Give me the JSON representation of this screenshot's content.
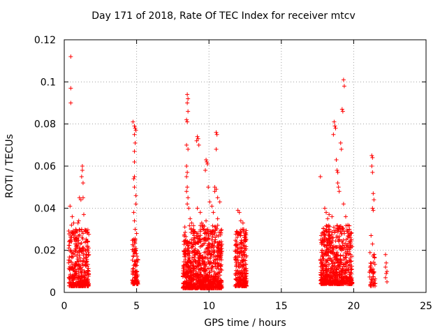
{
  "chart_data": {
    "type": "scatter",
    "title": "Day 171 of 2018, Rate Of TEC Index for receiver mtcv",
    "xlabel": "GPS time / hours",
    "ylabel": "ROTI / TECUs",
    "xlim": [
      0,
      25
    ],
    "ylim": [
      0,
      0.12
    ],
    "xticks": [
      "0",
      "5",
      "10",
      "15",
      "20",
      "25"
    ],
    "yticks": [
      "0",
      "0.02",
      "0.04",
      "0.06",
      "0.08",
      "0.1",
      "0.12"
    ],
    "grid": true,
    "marker": "+",
    "color": "#ff0000",
    "series": [
      {
        "points": [
          [
            0.45,
            0.112
          ],
          [
            0.45,
            0.097
          ],
          [
            0.45,
            0.09
          ],
          [
            0.4,
            0.041
          ],
          [
            0.5,
            0.032
          ],
          [
            0.6,
            0.028
          ],
          [
            0.7,
            0.025
          ],
          [
            0.8,
            0.03
          ],
          [
            0.9,
            0.022
          ],
          [
            1.0,
            0.034
          ],
          [
            1.05,
            0.045
          ],
          [
            1.15,
            0.044
          ],
          [
            1.2,
            0.03
          ],
          [
            1.3,
            0.028
          ],
          [
            1.1,
            0.02
          ],
          [
            0.95,
            0.033
          ],
          [
            1.25,
            0.06
          ],
          [
            1.25,
            0.058
          ],
          [
            1.2,
            0.055
          ],
          [
            1.3,
            0.052
          ],
          [
            1.3,
            0.045
          ],
          [
            1.35,
            0.037
          ],
          [
            1.45,
            0.024
          ],
          [
            1.55,
            0.022
          ],
          [
            1.6,
            0.02
          ],
          [
            1.7,
            0.018
          ],
          [
            0.55,
            0.036
          ],
          [
            0.65,
            0.033
          ],
          [
            4.75,
            0.081
          ],
          [
            4.85,
            0.079
          ],
          [
            4.9,
            0.078
          ],
          [
            4.95,
            0.077
          ],
          [
            4.85,
            0.075
          ],
          [
            4.9,
            0.071
          ],
          [
            4.85,
            0.067
          ],
          [
            4.85,
            0.062
          ],
          [
            4.85,
            0.055
          ],
          [
            4.8,
            0.054
          ],
          [
            4.85,
            0.05
          ],
          [
            4.95,
            0.046
          ],
          [
            4.95,
            0.042
          ],
          [
            4.8,
            0.038
          ],
          [
            4.85,
            0.034
          ],
          [
            4.9,
            0.03
          ],
          [
            5.0,
            0.028
          ],
          [
            4.9,
            0.025
          ],
          [
            4.8,
            0.022
          ],
          [
            4.85,
            0.02
          ],
          [
            8.5,
            0.094
          ],
          [
            8.55,
            0.092
          ],
          [
            8.5,
            0.09
          ],
          [
            8.55,
            0.086
          ],
          [
            8.45,
            0.082
          ],
          [
            8.5,
            0.081
          ],
          [
            8.45,
            0.07
          ],
          [
            8.55,
            0.068
          ],
          [
            8.45,
            0.06
          ],
          [
            8.5,
            0.057
          ],
          [
            8.45,
            0.055
          ],
          [
            8.5,
            0.05
          ],
          [
            8.45,
            0.048
          ],
          [
            8.55,
            0.045
          ],
          [
            8.5,
            0.042
          ],
          [
            8.6,
            0.04
          ],
          [
            8.7,
            0.035
          ],
          [
            8.8,
            0.033
          ],
          [
            9.2,
            0.074
          ],
          [
            9.25,
            0.073
          ],
          [
            9.15,
            0.072
          ],
          [
            9.3,
            0.07
          ],
          [
            9.2,
            0.04
          ],
          [
            9.4,
            0.038
          ],
          [
            9.5,
            0.033
          ],
          [
            9.6,
            0.03
          ],
          [
            9.7,
            0.028
          ],
          [
            9.8,
            0.034
          ],
          [
            9.8,
            0.063
          ],
          [
            9.85,
            0.062
          ],
          [
            9.9,
            0.061
          ],
          [
            9.75,
            0.058
          ],
          [
            9.95,
            0.05
          ],
          [
            10.05,
            0.043
          ],
          [
            10.2,
            0.041
          ],
          [
            10.4,
            0.05
          ],
          [
            10.5,
            0.049
          ],
          [
            10.4,
            0.048
          ],
          [
            10.5,
            0.076
          ],
          [
            10.55,
            0.075
          ],
          [
            10.5,
            0.068
          ],
          [
            10.6,
            0.045
          ],
          [
            10.75,
            0.043
          ],
          [
            10.3,
            0.038
          ],
          [
            10.6,
            0.035
          ],
          [
            12.0,
            0.039
          ],
          [
            12.1,
            0.038
          ],
          [
            12.2,
            0.034
          ],
          [
            12.35,
            0.033
          ],
          [
            12.4,
            0.03
          ],
          [
            12.45,
            0.027
          ],
          [
            17.7,
            0.055
          ],
          [
            18.0,
            0.04
          ],
          [
            18.1,
            0.038
          ],
          [
            18.2,
            0.035
          ],
          [
            18.3,
            0.037
          ],
          [
            18.5,
            0.036
          ],
          [
            18.6,
            0.075
          ],
          [
            18.65,
            0.081
          ],
          [
            18.7,
            0.079
          ],
          [
            18.75,
            0.078
          ],
          [
            18.8,
            0.063
          ],
          [
            18.85,
            0.058
          ],
          [
            18.9,
            0.057
          ],
          [
            18.9,
            0.052
          ],
          [
            18.95,
            0.05
          ],
          [
            19.0,
            0.048
          ],
          [
            19.1,
            0.071
          ],
          [
            19.15,
            0.068
          ],
          [
            19.2,
            0.087
          ],
          [
            19.25,
            0.086
          ],
          [
            19.3,
            0.101
          ],
          [
            19.35,
            0.098
          ],
          [
            19.3,
            0.042
          ],
          [
            19.45,
            0.036
          ],
          [
            19.6,
            0.032
          ],
          [
            19.7,
            0.03
          ],
          [
            19.8,
            0.028
          ],
          [
            19.85,
            0.025
          ],
          [
            21.25,
            0.065
          ],
          [
            21.3,
            0.064
          ],
          [
            21.25,
            0.06
          ],
          [
            21.3,
            0.057
          ],
          [
            21.35,
            0.047
          ],
          [
            21.4,
            0.044
          ],
          [
            21.3,
            0.04
          ],
          [
            21.35,
            0.039
          ],
          [
            21.2,
            0.027
          ],
          [
            21.3,
            0.023
          ],
          [
            21.4,
            0.018
          ],
          [
            22.2,
            0.018
          ],
          [
            22.25,
            0.014
          ],
          [
            22.2,
            0.012
          ],
          [
            22.3,
            0.01
          ],
          [
            22.25,
            0.009
          ],
          [
            22.2,
            0.007
          ],
          [
            22.3,
            0.005
          ]
        ],
        "dense_clusters": [
          {
            "x": [
              0.3,
              1.7
            ],
            "y": [
              0.003,
              0.03
            ],
            "count": 380
          },
          {
            "x": [
              4.7,
              5.1
            ],
            "y": [
              0.004,
              0.028
            ],
            "count": 110
          },
          {
            "x": [
              8.2,
              10.9
            ],
            "y": [
              0.002,
              0.032
            ],
            "count": 900
          },
          {
            "x": [
              11.8,
              12.6
            ],
            "y": [
              0.003,
              0.03
            ],
            "count": 260
          },
          {
            "x": [
              17.7,
              19.9
            ],
            "y": [
              0.004,
              0.032
            ],
            "count": 650
          },
          {
            "x": [
              21.1,
              21.5
            ],
            "y": [
              0.003,
              0.02
            ],
            "count": 45
          }
        ]
      }
    ]
  }
}
